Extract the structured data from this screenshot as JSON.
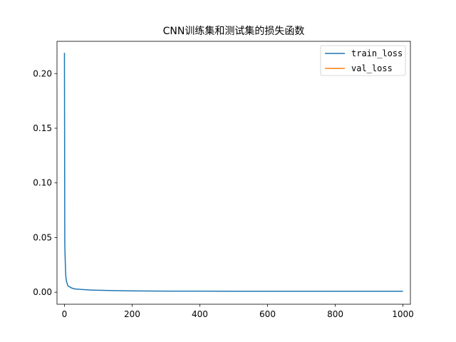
{
  "chart_data": {
    "type": "line",
    "title": "CNN训练集和测试集的损失函数",
    "xlabel": "",
    "ylabel": "",
    "xlim": [
      -22,
      1022
    ],
    "ylim": [
      -0.011,
      0.2295
    ],
    "xticks": [
      0,
      200,
      400,
      600,
      800,
      1000
    ],
    "yticks": [
      0.0,
      0.05,
      0.1,
      0.15,
      0.2
    ],
    "xtick_labels": [
      "0",
      "200",
      "400",
      "600",
      "800",
      "1000"
    ],
    "ytick_labels": [
      "0.00",
      "0.05",
      "0.10",
      "0.15",
      "0.20"
    ],
    "grid": false,
    "legend": {
      "position": "top-right"
    },
    "series": [
      {
        "name": "train_loss",
        "color": "#1f77b4",
        "x": [
          0,
          1,
          2,
          3,
          4,
          5,
          6,
          8,
          10,
          12,
          15,
          20,
          25,
          30,
          40,
          50,
          75,
          100,
          150,
          200,
          300,
          400,
          500,
          600,
          700,
          800,
          900,
          1000
        ],
        "y": [
          0.219,
          0.045,
          0.032,
          0.022,
          0.015,
          0.012,
          0.01,
          0.008,
          0.006,
          0.0055,
          0.005,
          0.004,
          0.0035,
          0.003,
          0.0028,
          0.0025,
          0.002,
          0.0018,
          0.0015,
          0.0012,
          0.001,
          0.001,
          0.0009,
          0.0009,
          0.0009,
          0.0009,
          0.0009,
          0.0009
        ]
      },
      {
        "name": "val_loss",
        "color": "#ff7f0e",
        "x": [],
        "y": []
      }
    ]
  }
}
